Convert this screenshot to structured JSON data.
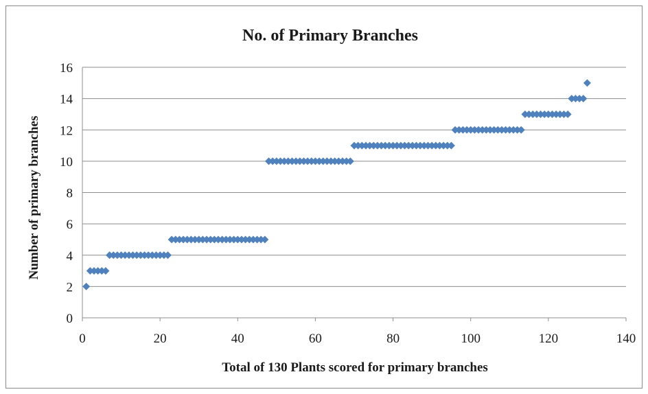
{
  "chart_data": {
    "type": "scatter",
    "title": "No. of Primary Branches",
    "xlabel": "Total of 130 Plants scored for primary  branches",
    "ylabel": "Number of primary  branches",
    "xlim": [
      0,
      140
    ],
    "ylim": [
      0,
      16
    ],
    "x_ticks": [
      "0",
      "20",
      "40",
      "60",
      "80",
      "100",
      "120",
      "140"
    ],
    "y_ticks": [
      "0",
      "2",
      "4",
      "6",
      "8",
      "10",
      "12",
      "14",
      "16"
    ],
    "grid": "horizontal",
    "legend": "none",
    "marker": "diamond",
    "color": "#4F81BD",
    "series": [
      {
        "points": [
          {
            "x_start": 1,
            "x_end": 1,
            "y": 2
          },
          {
            "x_start": 2,
            "x_end": 6,
            "y": 3
          },
          {
            "x_start": 7,
            "x_end": 22,
            "y": 4
          },
          {
            "x_start": 23,
            "x_end": 47,
            "y": 5
          },
          {
            "x_start": 48,
            "x_end": 69,
            "y": 10
          },
          {
            "x_start": 70,
            "x_end": 95,
            "y": 11
          },
          {
            "x_start": 96,
            "x_end": 113,
            "y": 12
          },
          {
            "x_start": 114,
            "x_end": 125,
            "y": 13
          },
          {
            "x_start": 126,
            "x_end": 129,
            "y": 14
          },
          {
            "x_start": 130,
            "x_end": 130,
            "y": 15
          }
        ]
      }
    ]
  }
}
